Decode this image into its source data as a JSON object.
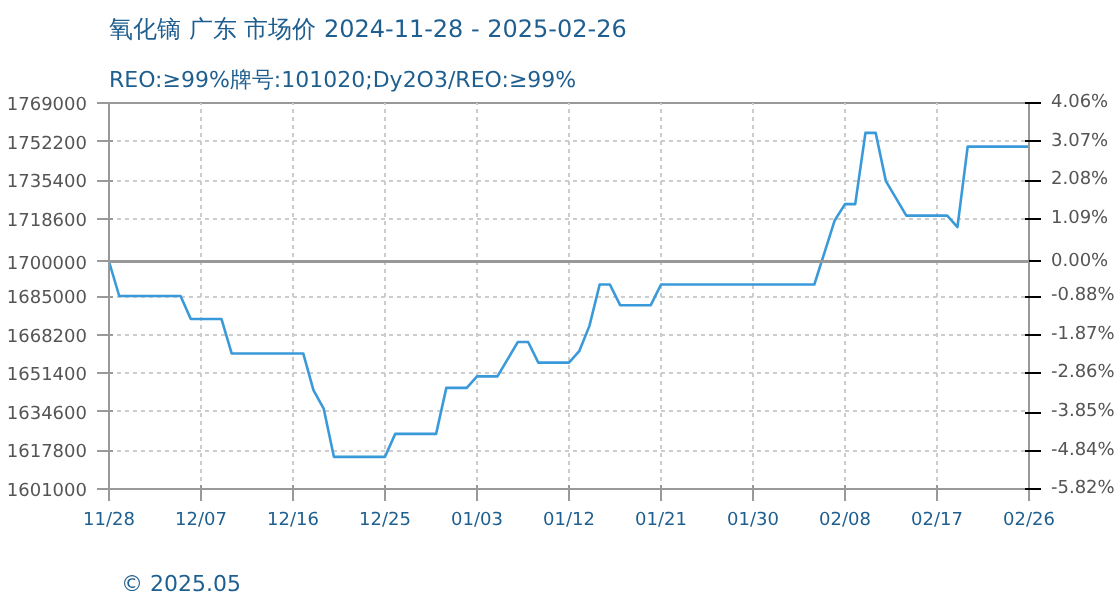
{
  "chart_data": {
    "type": "line",
    "title": "氧化镝 广东 市场价 2024-11-28 - 2025-02-26",
    "subtitle": "REO:≥99%牌号:101020;Dy2O3/REO:≥99%",
    "x": [
      "2024-11-28",
      "2024-11-29",
      "2024-12-05",
      "2024-12-06",
      "2024-12-09",
      "2024-12-10",
      "2024-12-17",
      "2024-12-18",
      "2024-12-19",
      "2024-12-20",
      "2024-12-25",
      "2024-12-26",
      "2024-12-30",
      "2024-12-31",
      "2025-01-02",
      "2025-01-03",
      "2025-01-05",
      "2025-01-07",
      "2025-01-08",
      "2025-01-09",
      "2025-01-12",
      "2025-01-13",
      "2025-01-14",
      "2025-01-15",
      "2025-01-16",
      "2025-01-17",
      "2025-01-20",
      "2025-01-21",
      "2025-02-05",
      "2025-02-06",
      "2025-02-07",
      "2025-02-08",
      "2025-02-09",
      "2025-02-10",
      "2025-02-11",
      "2025-02-12",
      "2025-02-14",
      "2025-02-18",
      "2025-02-19",
      "2025-02-20",
      "2025-02-26"
    ],
    "series": [
      {
        "color": "#3a9ad9",
        "values": [
          1700000,
          1685000,
          1685000,
          1675000,
          1675000,
          1660000,
          1660000,
          1644000,
          1636000,
          1615000,
          1615000,
          1625000,
          1625000,
          1645000,
          1645000,
          1650000,
          1650000,
          1665000,
          1665000,
          1656000,
          1656000,
          1661000,
          1672000,
          1690000,
          1690000,
          1681000,
          1681000,
          1690000,
          1690000,
          1704000,
          1718000,
          1725000,
          1725000,
          1756000,
          1756000,
          1735000,
          1720000,
          1720000,
          1715000,
          1750000,
          1750000
        ]
      }
    ],
    "xlim": [
      "2024-11-28",
      "2025-02-26"
    ],
    "xticks": [
      {
        "value": "2024-11-28",
        "label": "11/28"
      },
      {
        "value": "2024-12-07",
        "label": "12/07"
      },
      {
        "value": "2024-12-16",
        "label": "12/16"
      },
      {
        "value": "2024-12-25",
        "label": "12/25"
      },
      {
        "value": "2025-01-03",
        "label": "01/03"
      },
      {
        "value": "2025-01-12",
        "label": "01/12"
      },
      {
        "value": "2025-01-21",
        "label": "01/21"
      },
      {
        "value": "2025-01-30",
        "label": "01/30"
      },
      {
        "value": "2025-02-08",
        "label": "02/08"
      },
      {
        "value": "2025-02-17",
        "label": "02/17"
      },
      {
        "value": "2025-02-26",
        "label": "02/26"
      }
    ],
    "ylim": [
      1601000,
      1769000
    ],
    "yticks": [
      1601000,
      1617800,
      1634600,
      1651400,
      1668200,
      1685000,
      1700000,
      1718600,
      1735400,
      1752200,
      1769000
    ],
    "y2lim": [
      -5.82,
      4.06
    ],
    "y2ticks": [
      {
        "value": -5.82,
        "label": "-5.82%"
      },
      {
        "value": -4.84,
        "label": "-4.84%"
      },
      {
        "value": -3.85,
        "label": "-3.85%"
      },
      {
        "value": -2.86,
        "label": "-2.86%"
      },
      {
        "value": -1.87,
        "label": "-1.87%"
      },
      {
        "value": -0.88,
        "label": "-0.88%"
      },
      {
        "value": 0,
        "label": "0.00%"
      },
      {
        "value": 1.09,
        "label": "1.09%"
      },
      {
        "value": 2.08,
        "label": "2.08%"
      },
      {
        "value": 3.07,
        "label": "3.07%"
      },
      {
        "value": 4.06,
        "label": "4.06%"
      }
    ],
    "ref_lines": [
      {
        "axis": "y",
        "value": 1700000,
        "color": "#999999"
      }
    ],
    "grid": true,
    "annotations": [
      "© 2025.05"
    ]
  }
}
